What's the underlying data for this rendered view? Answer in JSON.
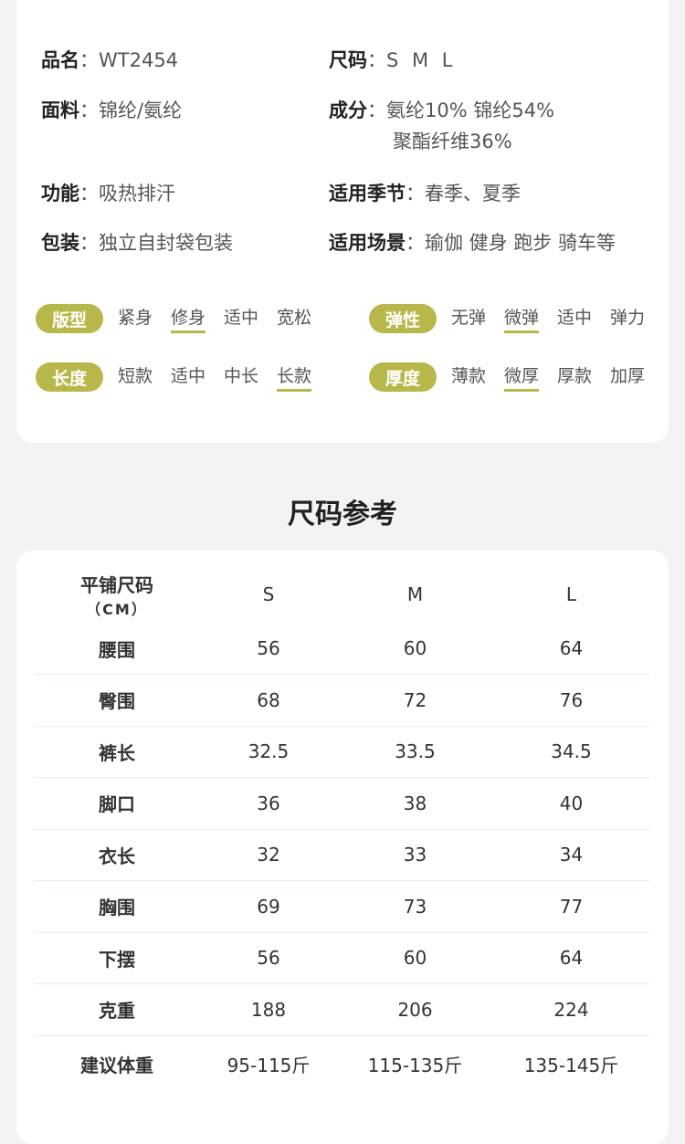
{
  "specs": [
    {
      "label": "品名",
      "value": "WT2454"
    },
    {
      "label": "尺码",
      "value": "S M L"
    },
    {
      "label": "面料",
      "value": "锦纶/氨纶"
    },
    {
      "label": "成分",
      "value": "氨纶10% 锦纶54%",
      "value2": "聚酯纤维36%"
    },
    {
      "label": "功能",
      "value": "吸热排汗"
    },
    {
      "label": "适用季节",
      "value": "春季、夏季"
    },
    {
      "label": "包装",
      "value": "独立自封袋包装"
    },
    {
      "label": "适用场景",
      "value": "瑜伽 健身 跑步 骑车等"
    }
  ],
  "attributes": [
    {
      "label": "版型",
      "options": [
        "紧身",
        "修身",
        "适中",
        "宽松"
      ],
      "selected": 1
    },
    {
      "label": "弹性",
      "options": [
        "无弹",
        "微弹",
        "适中",
        "弹力"
      ],
      "selected": 1
    },
    {
      "label": "长度",
      "options": [
        "短款",
        "适中",
        "中长",
        "长款"
      ],
      "selected": 3
    },
    {
      "label": "厚度",
      "options": [
        "薄款",
        "微厚",
        "厚款",
        "加厚"
      ],
      "selected": 1
    }
  ],
  "accent_color": "#b8b84a",
  "size_title": "尺码参考",
  "size_table": {
    "header": {
      "label": "平铺尺码",
      "unit": "（CM）",
      "sizes": [
        "S",
        "M",
        "L"
      ]
    },
    "rows": [
      {
        "label": "腰围",
        "values": [
          "56",
          "60",
          "64"
        ]
      },
      {
        "label": "臀围",
        "values": [
          "68",
          "72",
          "76"
        ]
      },
      {
        "label": "裤长",
        "values": [
          "32.5",
          "33.5",
          "34.5"
        ]
      },
      {
        "label": "脚口",
        "values": [
          "36",
          "38",
          "40"
        ]
      },
      {
        "label": "衣长",
        "values": [
          "32",
          "33",
          "34"
        ]
      },
      {
        "label": "胸围",
        "values": [
          "69",
          "73",
          "77"
        ]
      },
      {
        "label": "下摆",
        "values": [
          "56",
          "60",
          "64"
        ]
      },
      {
        "label": "克重",
        "values": [
          "188",
          "206",
          "224"
        ]
      },
      {
        "label": "建议体重",
        "values": [
          "95-115斤",
          "115-135斤",
          "135-145斤"
        ]
      }
    ]
  }
}
